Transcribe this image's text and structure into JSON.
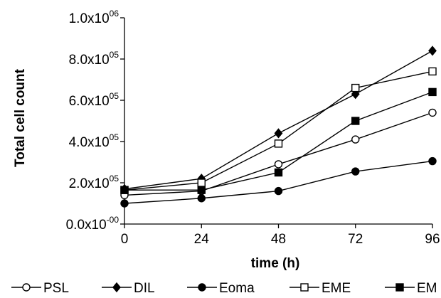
{
  "chart_data": {
    "type": "line",
    "xlabel": "time (h)",
    "ylabel": "Total cell count",
    "x": [
      0,
      24,
      48,
      72,
      96
    ],
    "xlim": [
      0,
      96
    ],
    "ylim": [
      0,
      1000000
    ],
    "x_tick_labels": [
      "0",
      "24",
      "48",
      "72",
      "96"
    ],
    "y_ticks": [
      {
        "value": 0,
        "mantissa": "0.0x10",
        "exp": "-00"
      },
      {
        "value": 200000,
        "mantissa": "2.0x10",
        "exp": "05"
      },
      {
        "value": 400000,
        "mantissa": "4.0x10",
        "exp": "05"
      },
      {
        "value": 600000,
        "mantissa": "6.0x10",
        "exp": "05"
      },
      {
        "value": 800000,
        "mantissa": "8.0x10",
        "exp": "05"
      },
      {
        "value": 1000000,
        "mantissa": "1.0x10",
        "exp": "06"
      }
    ],
    "grid": false,
    "legend_position": "bottom",
    "series": [
      {
        "name": "PSL",
        "marker": "circle-open",
        "values": [
          140000,
          160000,
          290000,
          410000,
          540000
        ]
      },
      {
        "name": "DIL",
        "marker": "diamond-filled",
        "values": [
          170000,
          220000,
          440000,
          630000,
          840000
        ]
      },
      {
        "name": "Eoma",
        "marker": "circle-filled",
        "values": [
          100000,
          125000,
          160000,
          255000,
          305000
        ]
      },
      {
        "name": "EME",
        "marker": "square-open",
        "values": [
          165000,
          200000,
          390000,
          660000,
          740000
        ]
      },
      {
        "name": "EM",
        "marker": "square-filled",
        "values": [
          165000,
          165000,
          250000,
          500000,
          640000
        ]
      }
    ]
  }
}
